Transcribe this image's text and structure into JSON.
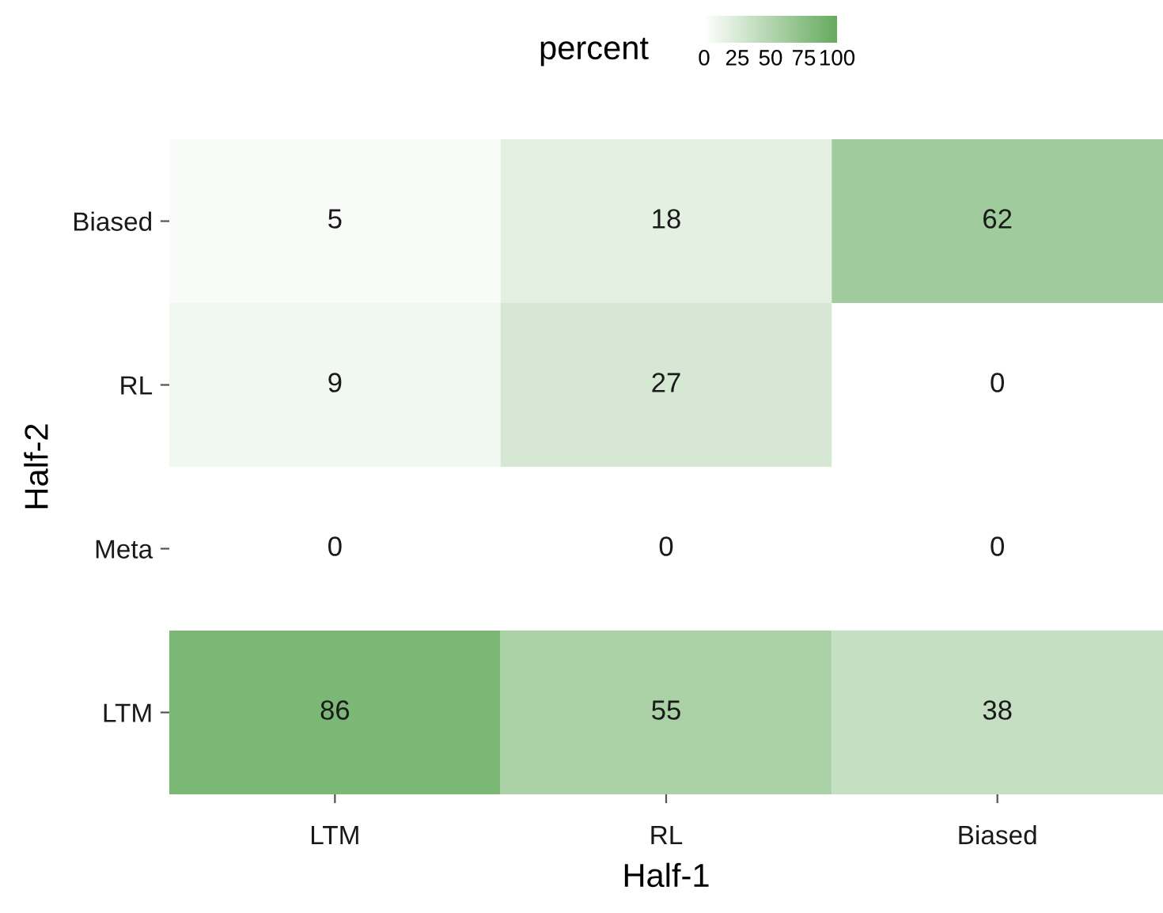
{
  "chart_data": {
    "type": "heatmap",
    "xlabel": "Half-1",
    "ylabel": "Half-2",
    "clabel": "percent",
    "categories": [
      "LTM",
      "RL",
      "Biased"
    ],
    "y_categories": [
      "Biased",
      "RL",
      "Meta",
      "LTM"
    ],
    "cells": [
      [
        5,
        18,
        62
      ],
      [
        9,
        27,
        0
      ],
      [
        0,
        0,
        0
      ],
      [
        86,
        55,
        38
      ]
    ],
    "colors": [
      "#ffffff",
      "#66ab5f"
    ],
    "data_labels": true,
    "clim": [
      0,
      100
    ],
    "cticks": [
      0,
      25,
      50,
      75,
      100
    ]
  }
}
